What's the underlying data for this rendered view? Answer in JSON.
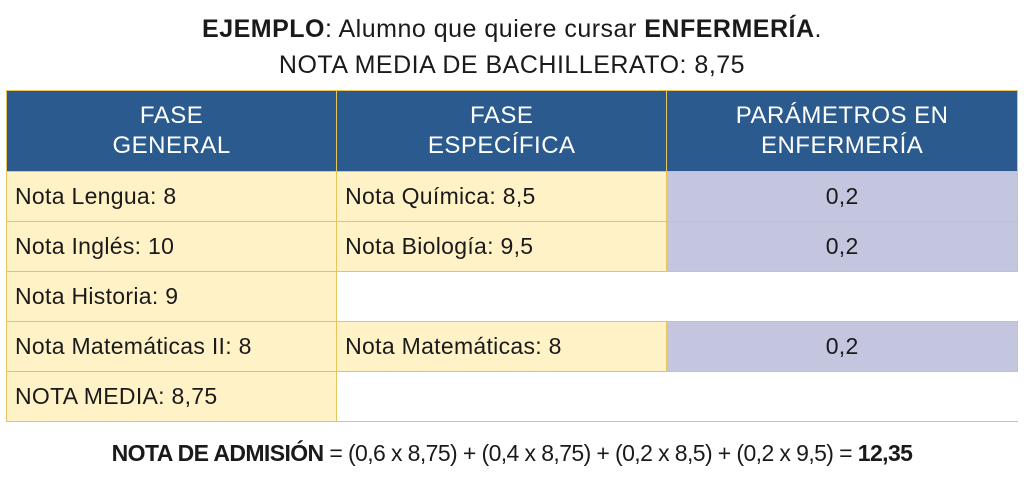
{
  "header": {
    "line1_bold_start": "EJEMPLO",
    "line1_mid": ": Alumno que quiere cursar ",
    "line1_bold_end": "ENFERMERÍA",
    "line1_end": ".",
    "line2": "NOTA MEDIA DE BACHILLERATO: 8,75"
  },
  "table": {
    "columns": [
      {
        "line1": "FASE",
        "line2": "GENERAL"
      },
      {
        "line1": "FASE",
        "line2": "ESPECÍFICA"
      },
      {
        "line1": "PARÁMETROS EN",
        "line2": "ENFERMERÍA"
      }
    ],
    "rows": [
      {
        "general": "Nota Lengua: 8",
        "especifica": "Nota Química: 8,5",
        "parametro": "0,2"
      },
      {
        "general": "Nota Inglés: 10",
        "especifica": "Nota Biología: 9,5",
        "parametro": "0,2"
      },
      {
        "general": "Nota Historia: 9",
        "especifica": "",
        "parametro": ""
      },
      {
        "general": "Nota Matemáticas II: 8",
        "especifica": "Nota Matemáticas: 8",
        "parametro": "0,2"
      },
      {
        "general": "NOTA MEDIA: 8,75",
        "especifica": "",
        "parametro": ""
      }
    ]
  },
  "formula": {
    "label": "NOTA DE ADMISIÓN",
    "expression": " = (0,6 x 8,75) + (0,4 x 8,75) + (0,2 x 8,5) + (0,2 x 9,5) = ",
    "result": "12,35"
  },
  "colors": {
    "header_blue": "#2b5b8e",
    "cell_yellow": "#fff2c6",
    "cell_lavender": "#c3c6de",
    "border_gold": "#e6c65a"
  }
}
